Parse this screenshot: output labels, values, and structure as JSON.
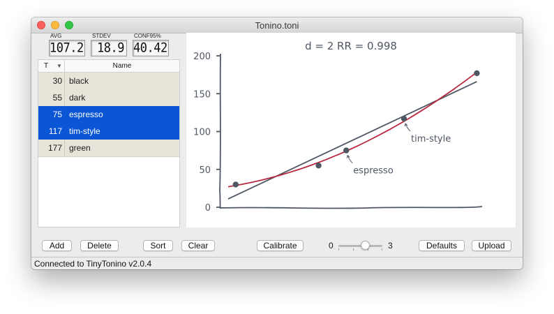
{
  "window": {
    "title": "Tonino.toni"
  },
  "stats": {
    "avg_label": "AVG",
    "avg_value": "107.2",
    "stdev_label": "STDEV",
    "stdev_value": "18.9",
    "conf_label": "CONF95%",
    "conf_value": "40.42"
  },
  "table": {
    "col_t": "T",
    "col_name": "Name",
    "rows": [
      {
        "t": "30",
        "name": "black",
        "selected": false
      },
      {
        "t": "55",
        "name": "dark",
        "selected": false
      },
      {
        "t": "75",
        "name": "espresso",
        "selected": true
      },
      {
        "t": "117",
        "name": "tim-style",
        "selected": true
      },
      {
        "t": "177",
        "name": "green",
        "selected": false
      }
    ]
  },
  "chart_data": {
    "type": "scatter",
    "title": "d = 2   RR = 0.998",
    "yticks": [
      "200",
      "150",
      "100",
      "50",
      "0"
    ],
    "ylim": [
      0,
      200
    ],
    "points": [
      {
        "x": 0.03,
        "y": 30,
        "label": ""
      },
      {
        "x": 0.36,
        "y": 55,
        "label": ""
      },
      {
        "x": 0.47,
        "y": 75,
        "label": "espresso"
      },
      {
        "x": 0.7,
        "y": 117,
        "label": "tim-style"
      },
      {
        "x": 0.99,
        "y": 177,
        "label": ""
      }
    ],
    "colors": {
      "fit_curve": "#b8283f",
      "linear": "#4f5764",
      "points": "#4f5764"
    }
  },
  "buttons": {
    "add": "Add",
    "delete": "Delete",
    "sort": "Sort",
    "clear": "Clear",
    "calibrate": "Calibrate",
    "defaults": "Defaults",
    "upload": "Upload"
  },
  "slider": {
    "min_label": "0",
    "max_label": "3",
    "value": 2
  },
  "status": {
    "text": "Connected to TinyTonino v2.0.4"
  },
  "colors": {
    "selection": "#0a56d4",
    "row_bg": "#e9e4da"
  }
}
